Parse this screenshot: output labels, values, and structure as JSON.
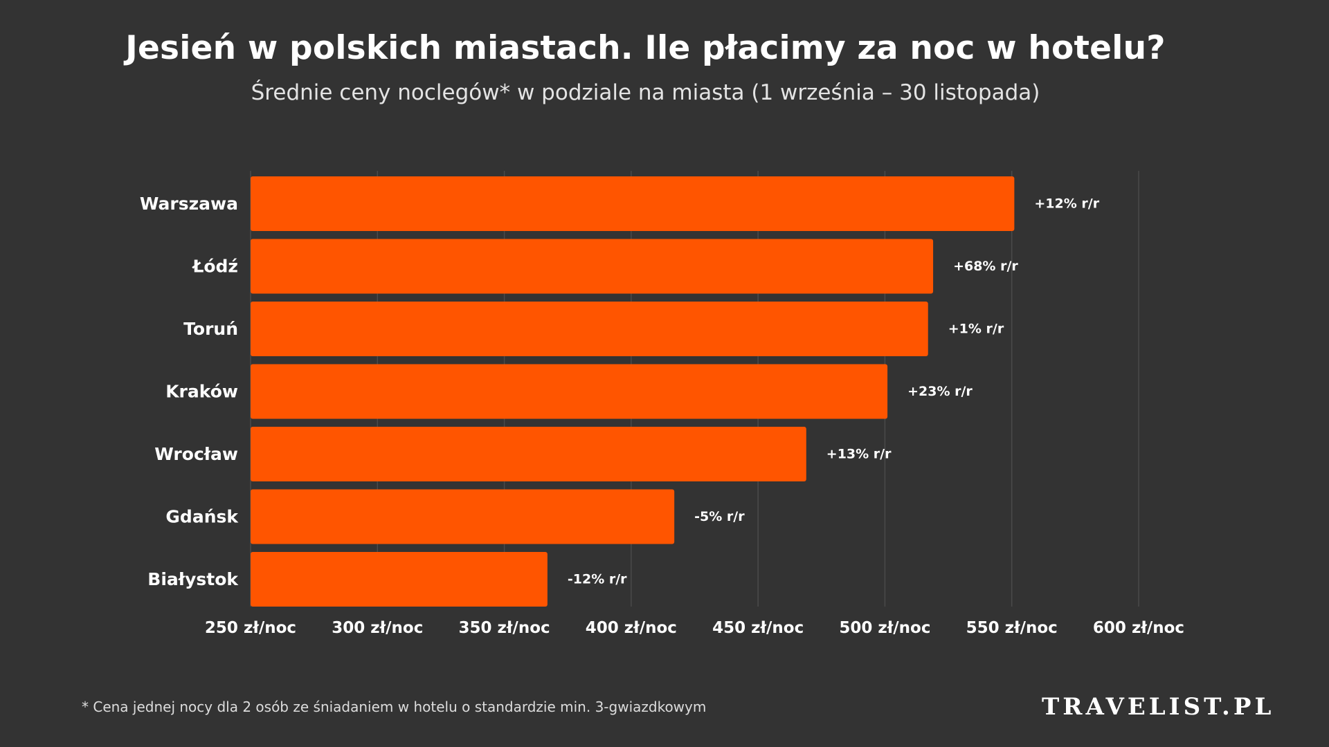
{
  "title": "Jesień w polskich miastach. Ile płacimy za noc w hotelu?",
  "subtitle": "Średnie ceny noclegów* w podziale na miasta (1 września – 30 listopada)",
  "footnote": "* Cena jednej nocy dla 2 osób ze śniadaniem w hotelu o standardzie min. 3-gwiazdkowym",
  "logo": "TRAVELIST.PL",
  "colors": {
    "background": "#333333",
    "bar": "#FF5500",
    "text": "#FFFFFF",
    "gridline": "#4A4A4A"
  },
  "chart_data": {
    "type": "bar",
    "orientation": "horizontal",
    "categories": [
      "Warszawa",
      "Łódź",
      "Toruń",
      "Kraków",
      "Wrocław",
      "Gdańsk",
      "Białystok"
    ],
    "values": [
      551,
      519,
      517,
      501,
      469,
      417,
      367
    ],
    "annotations": [
      "+12% r/r",
      "+68% r/r",
      "+1% r/r",
      "+23% r/r",
      "+13% r/r",
      "-5% r/r",
      "-12% r/r"
    ],
    "xlim": [
      250,
      600
    ],
    "xticks": [
      250,
      300,
      350,
      400,
      450,
      500,
      550,
      600
    ],
    "xtick_labels": [
      "250 zł/noc",
      "300 zł/noc",
      "350 zł/noc",
      "400 zł/noc",
      "450 zł/noc",
      "500 zł/noc",
      "550 zł/noc",
      "600 zł/noc"
    ],
    "grid": "vertical",
    "legend": "none"
  }
}
